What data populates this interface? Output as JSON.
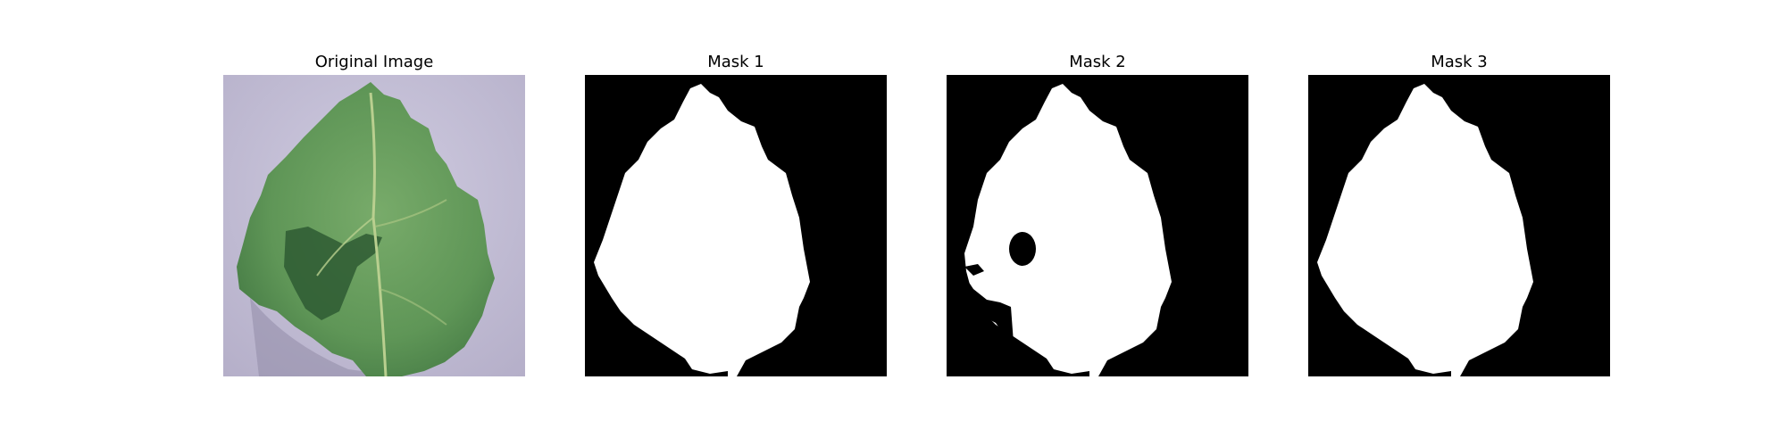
{
  "panels": [
    {
      "title": "Original Image"
    },
    {
      "title": "Mask 1"
    },
    {
      "title": "Mask 2"
    },
    {
      "title": "Mask 3"
    }
  ],
  "colors": {
    "mask_background": "#000000",
    "mask_foreground": "#ffffff",
    "photo_background": "#c5c0d6",
    "leaf_main": "#5f9657",
    "leaf_dark": "#2e5a32",
    "leaf_vein": "#b9cf8f"
  },
  "icons": [
    "leaf-photo",
    "segmentation-mask"
  ]
}
